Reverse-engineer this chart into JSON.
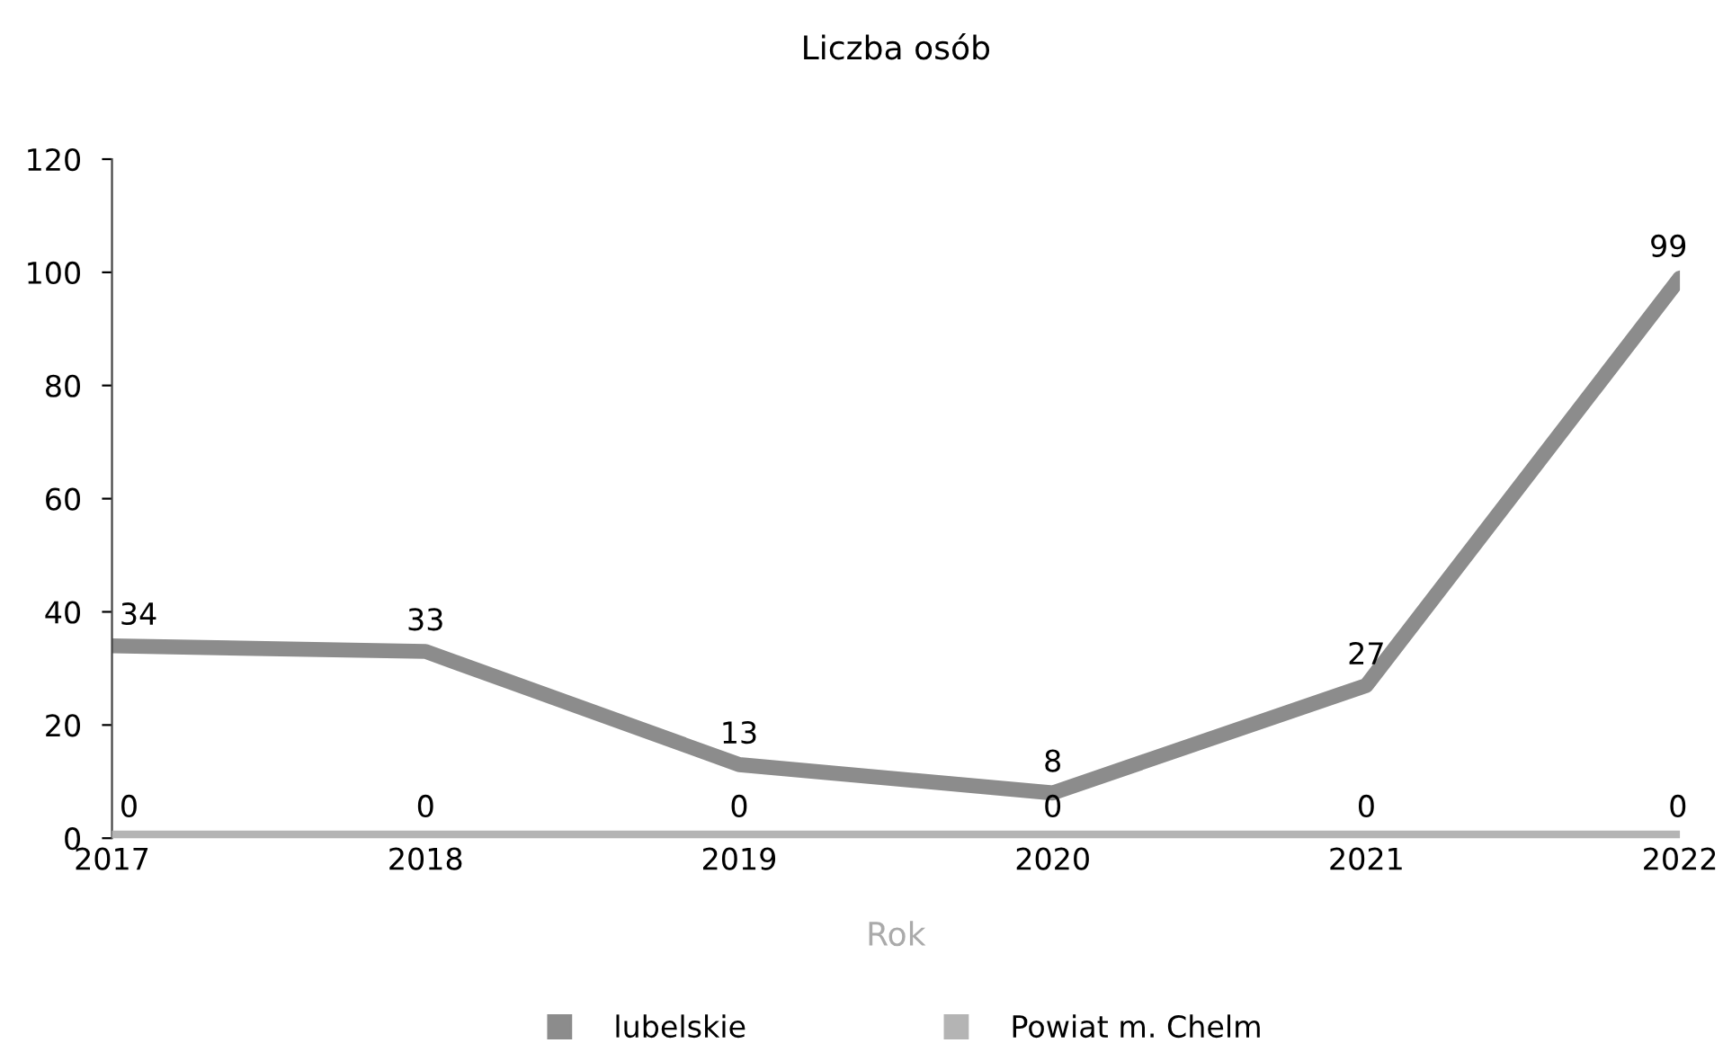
{
  "chart_data": {
    "type": "line",
    "title": "Liczba osób",
    "xlabel": "Rok",
    "categories": [
      "2017",
      "2018",
      "2019",
      "2020",
      "2021",
      "2022"
    ],
    "series": [
      {
        "name": "lubelskie",
        "color": "#8c8c8c",
        "values": [
          34,
          33,
          13,
          8,
          27,
          99
        ]
      },
      {
        "name": "Powiat m. Chelm",
        "color": "#b4b4b4",
        "values": [
          0,
          0,
          0,
          0,
          0,
          0
        ]
      }
    ],
    "ylim": [
      0,
      120
    ],
    "yticks": [
      0,
      20,
      40,
      60,
      80,
      100,
      120
    ],
    "data_labels": true,
    "legend": "bottom",
    "grid": false,
    "marker": "none",
    "line_style": "solid"
  }
}
